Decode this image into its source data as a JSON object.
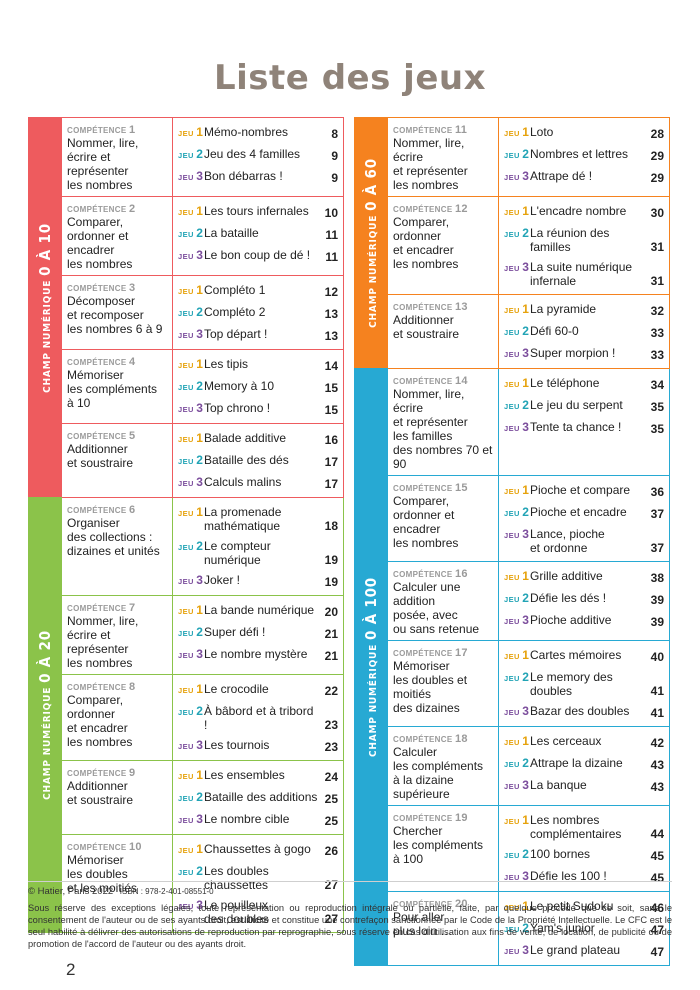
{
  "title": "Liste des jeux",
  "labels": {
    "competence": "compétence",
    "jeu": "jeu"
  },
  "colors": {
    "red": "#ee5b5e",
    "green": "#8bc34a",
    "orange": "#f5821f",
    "blue": "#27a9d3",
    "jeu1": "#e6a20c",
    "jeu2": "#21a3b5",
    "jeu3": "#7b4d9c"
  },
  "left": [
    {
      "band": {
        "prefix": "CHAMP NUMÉRIQUE",
        "range": "0 À 10",
        "color": "#ee5b5e"
      },
      "rows": [
        {
          "num": "1",
          "text": [
            "Nommer, lire,",
            "écrire et représenter",
            "les nombres"
          ],
          "games": [
            {
              "n": "1",
              "name": [
                "Mémo-nombres"
              ],
              "page": "8"
            },
            {
              "n": "2",
              "name": [
                "Jeu des 4 familles"
              ],
              "page": "9"
            },
            {
              "n": "3",
              "name": [
                "Bon débarras !"
              ],
              "page": "9"
            }
          ]
        },
        {
          "num": "2",
          "text": [
            "Comparer,",
            "ordonner et encadrer",
            "les nombres"
          ],
          "games": [
            {
              "n": "1",
              "name": [
                "Les tours infernales"
              ],
              "page": "10"
            },
            {
              "n": "2",
              "name": [
                "La bataille"
              ],
              "page": "11"
            },
            {
              "n": "3",
              "name": [
                "Le bon coup de dé !"
              ],
              "page": "11"
            }
          ]
        },
        {
          "num": "3",
          "text": [
            "Décomposer",
            "et recomposer",
            "les nombres 6 à 9"
          ],
          "games": [
            {
              "n": "1",
              "name": [
                "Compléto 1"
              ],
              "page": "12"
            },
            {
              "n": "2",
              "name": [
                "Compléto 2"
              ],
              "page": "13"
            },
            {
              "n": "3",
              "name": [
                "Top départ !"
              ],
              "page": "13"
            }
          ]
        },
        {
          "num": "4",
          "text": [
            "Mémoriser",
            "les compléments",
            "à 10"
          ],
          "games": [
            {
              "n": "1",
              "name": [
                "Les tipis"
              ],
              "page": "14"
            },
            {
              "n": "2",
              "name": [
                "Memory à 10"
              ],
              "page": "15"
            },
            {
              "n": "3",
              "name": [
                "Top chrono !"
              ],
              "page": "15"
            }
          ]
        },
        {
          "num": "5",
          "text": [
            "Additionner",
            "et soustraire"
          ],
          "games": [
            {
              "n": "1",
              "name": [
                "Balade additive"
              ],
              "page": "16"
            },
            {
              "n": "2",
              "name": [
                "Bataille des dés"
              ],
              "page": "17"
            },
            {
              "n": "3",
              "name": [
                "Calculs malins"
              ],
              "page": "17"
            }
          ]
        }
      ]
    },
    {
      "band": {
        "prefix": "CHAMP NUMÉRIQUE",
        "range": "0 À 20",
        "color": "#8bc34a"
      },
      "rows": [
        {
          "num": "6",
          "text": [
            "Organiser",
            "des collections :",
            "dizaines et unités"
          ],
          "games": [
            {
              "n": "1",
              "name": [
                "La promenade",
                "mathématique"
              ],
              "page": "18"
            },
            {
              "n": "2",
              "name": [
                "Le compteur numérique"
              ],
              "page": "19"
            },
            {
              "n": "3",
              "name": [
                "Joker !"
              ],
              "page": "19"
            }
          ]
        },
        {
          "num": "7",
          "text": [
            "Nommer, lire,",
            "écrire et représenter",
            "les nombres"
          ],
          "games": [
            {
              "n": "1",
              "name": [
                "La bande numérique"
              ],
              "page": "20"
            },
            {
              "n": "2",
              "name": [
                "Super défi !"
              ],
              "page": "21"
            },
            {
              "n": "3",
              "name": [
                "Le nombre mystère"
              ],
              "page": "21"
            }
          ]
        },
        {
          "num": "8",
          "text": [
            "Comparer, ordonner",
            "et encadrer",
            "les nombres"
          ],
          "games": [
            {
              "n": "1",
              "name": [
                "Le crocodile"
              ],
              "page": "22"
            },
            {
              "n": "2",
              "name": [
                "À bâbord et à tribord !"
              ],
              "page": "23"
            },
            {
              "n": "3",
              "name": [
                "Les tournois"
              ],
              "page": "23"
            }
          ]
        },
        {
          "num": "9",
          "text": [
            "Additionner",
            "et soustraire"
          ],
          "games": [
            {
              "n": "1",
              "name": [
                "Les ensembles"
              ],
              "page": "24"
            },
            {
              "n": "2",
              "name": [
                "Bataille des additions"
              ],
              "page": "25"
            },
            {
              "n": "3",
              "name": [
                "Le nombre cible"
              ],
              "page": "25"
            }
          ]
        },
        {
          "num": "10",
          "text": [
            "Mémoriser",
            "les doubles",
            "et les moitiés"
          ],
          "games": [
            {
              "n": "1",
              "name": [
                "Chaussettes à gogo"
              ],
              "page": "26"
            },
            {
              "n": "2",
              "name": [
                "Les doubles",
                "chaussettes"
              ],
              "page": "27"
            },
            {
              "n": "3",
              "name": [
                "Le pouilleux",
                "des doubles"
              ],
              "page": "27"
            }
          ]
        }
      ]
    }
  ],
  "right": [
    {
      "band": {
        "prefix": "CHAMP NUMÉRIQUE",
        "range": "0 À 60",
        "color": "#f5821f"
      },
      "rows": [
        {
          "num": "11",
          "text": [
            "Nommer, lire, écrire",
            "et représenter",
            "les nombres"
          ],
          "games": [
            {
              "n": "1",
              "name": [
                "Loto"
              ],
              "page": "28"
            },
            {
              "n": "2",
              "name": [
                "Nombres et lettres"
              ],
              "page": "29"
            },
            {
              "n": "3",
              "name": [
                "Attrape dé !"
              ],
              "page": "29"
            }
          ]
        },
        {
          "num": "12",
          "text": [
            "Comparer, ordonner",
            "et encadrer",
            "les nombres"
          ],
          "games": [
            {
              "n": "1",
              "name": [
                "L'encadre nombre"
              ],
              "page": "30"
            },
            {
              "n": "2",
              "name": [
                "La réunion des familles"
              ],
              "page": "31"
            },
            {
              "n": "3",
              "name": [
                "La suite numérique",
                "infernale"
              ],
              "page": "31"
            }
          ]
        },
        {
          "num": "13",
          "text": [
            "Additionner",
            "et soustraire"
          ],
          "games": [
            {
              "n": "1",
              "name": [
                "La pyramide"
              ],
              "page": "32"
            },
            {
              "n": "2",
              "name": [
                "Défi 60-0"
              ],
              "page": "33"
            },
            {
              "n": "3",
              "name": [
                "Super morpion !"
              ],
              "page": "33"
            }
          ]
        }
      ]
    },
    {
      "band": {
        "prefix": "CHAMP NUMÉRIQUE",
        "range": "0 À 100",
        "color": "#27a9d3"
      },
      "rows": [
        {
          "num": "14",
          "text": [
            "Nommer, lire, écrire",
            "et représenter",
            "les familles",
            "des nombres 70 et 90"
          ],
          "games": [
            {
              "n": "1",
              "name": [
                "Le téléphone"
              ],
              "page": "34"
            },
            {
              "n": "2",
              "name": [
                "Le jeu du serpent"
              ],
              "page": "35"
            },
            {
              "n": "3",
              "name": [
                "Tente ta chance !"
              ],
              "page": "35"
            }
          ]
        },
        {
          "num": "15",
          "text": [
            "Comparer,",
            "ordonner et encadrer",
            "les nombres"
          ],
          "games": [
            {
              "n": "1",
              "name": [
                "Pioche et compare"
              ],
              "page": "36"
            },
            {
              "n": "2",
              "name": [
                "Pioche et encadre"
              ],
              "page": "37"
            },
            {
              "n": "3",
              "name": [
                "Lance, pioche",
                "et ordonne"
              ],
              "page": "37"
            }
          ]
        },
        {
          "num": "16",
          "text": [
            "Calculer une addition",
            "posée, avec",
            "ou sans retenue"
          ],
          "games": [
            {
              "n": "1",
              "name": [
                "Grille additive"
              ],
              "page": "38"
            },
            {
              "n": "2",
              "name": [
                "Défie les dés !"
              ],
              "page": "39"
            },
            {
              "n": "3",
              "name": [
                "Pioche additive"
              ],
              "page": "39"
            }
          ]
        },
        {
          "num": "17",
          "text": [
            "Mémoriser",
            "les doubles et moitiés",
            "des dizaines"
          ],
          "games": [
            {
              "n": "1",
              "name": [
                "Cartes mémoires"
              ],
              "page": "40"
            },
            {
              "n": "2",
              "name": [
                "Le memory des doubles"
              ],
              "page": "41"
            },
            {
              "n": "3",
              "name": [
                "Bazar des doubles"
              ],
              "page": "41"
            }
          ]
        },
        {
          "num": "18",
          "text": [
            "Calculer",
            "les compléments",
            "à la dizaine",
            "supérieure"
          ],
          "games": [
            {
              "n": "1",
              "name": [
                "Les cerceaux"
              ],
              "page": "42"
            },
            {
              "n": "2",
              "name": [
                "Attrape la dizaine"
              ],
              "page": "43"
            },
            {
              "n": "3",
              "name": [
                "La banque"
              ],
              "page": "43"
            }
          ]
        },
        {
          "num": "19",
          "text": [
            "Chercher",
            "les compléments",
            "à 100"
          ],
          "games": [
            {
              "n": "1",
              "name": [
                "Les nombres",
                "complémentaires"
              ],
              "page": "44"
            },
            {
              "n": "2",
              "name": [
                "100 bornes"
              ],
              "page": "45"
            },
            {
              "n": "3",
              "name": [
                "Défie les 100 !"
              ],
              "page": "45"
            }
          ]
        },
        {
          "num": "20",
          "text": [
            "Pour aller",
            "plus loin …"
          ],
          "games": [
            {
              "n": "1",
              "name": [
                "Le petit Sudoku"
              ],
              "page": "46"
            },
            {
              "n": "2",
              "name": [
                "Yam's junior"
              ],
              "page": "47"
            },
            {
              "n": "3",
              "name": [
                "Le grand plateau"
              ],
              "page": "47"
            }
          ]
        }
      ]
    }
  ],
  "footer": {
    "copyright": "© Hatier, Paris 2022",
    "isbn": "ISBN : 978-2-401-08551-0",
    "legal": "Sous réserve des exceptions légales, toute représentation ou reproduction intégrale ou partielle, faite, par quelque procédé que ce soit, sans le consentement de l'auteur ou de ses ayants droit, est illicite et constitue une contrefaçon sanctionnée par le Code de la Propriété Intellectuelle. Le CFC est le seul habilité à délivrer des autorisations de reproduction par reprographie, sous réserve en cas d'utilisation aux fins de vente, de location, de publicité ou de promotion de l'accord de l'auteur ou des ayants droit."
  },
  "page_number": "2"
}
